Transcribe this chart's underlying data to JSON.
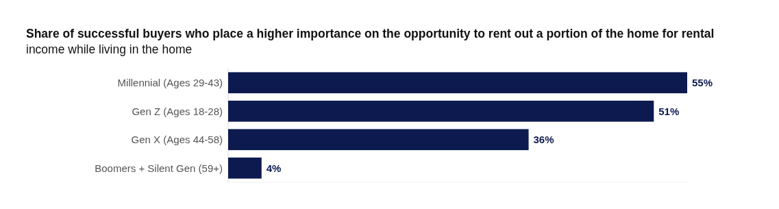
{
  "chart_data": {
    "type": "bar",
    "orientation": "horizontal",
    "title": "Share of successful buyers who place a higher importance on the opportunity to rent out a portion of the home for rental income while living in the home",
    "categories": [
      "Millennial (Ages 29-43)",
      "Gen Z (Ages 18-28)",
      "Gen X (Ages 44-58)",
      "Boomers + Silent Gen (59+)"
    ],
    "values": [
      55,
      51,
      36,
      4
    ],
    "value_labels": [
      "55%",
      "51%",
      "36%",
      "4%"
    ],
    "color": "#0c1a4f"
  }
}
